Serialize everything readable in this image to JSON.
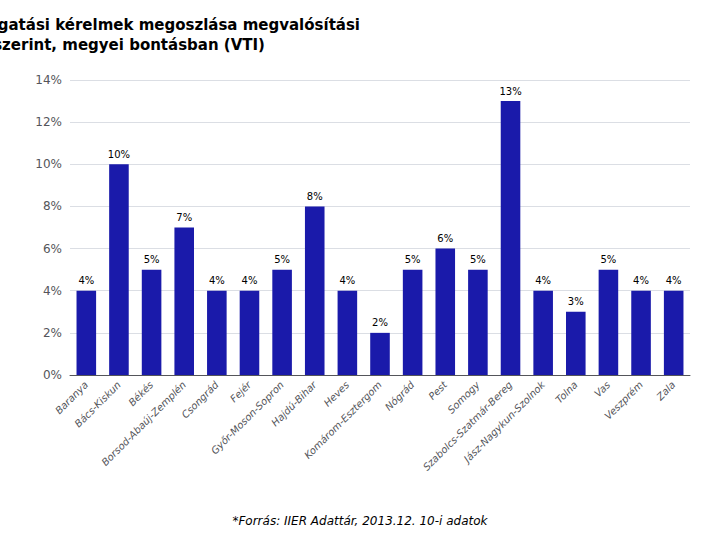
{
  "chart_data": {
    "type": "bar",
    "title": "Beérkezett támogatási kérelmek megoszlása megvalósítási\nhely szerint, megyei bontásban (VTI)",
    "footnote": "*Forrás: IIER Adattár, 2013.12. 10-i adatok",
    "categories": [
      "Baranya",
      "Bács-Kiskun",
      "Békés",
      "Borsod-Abaúj-Zemplén",
      "Csongrád",
      "Fejér",
      "Győr-Moson-Sopron",
      "Hajdú-Bihar",
      "Heves",
      "Komárom-Esztergom",
      "Nógrád",
      "Pest",
      "Somogy",
      "Szabolcs-Szatmár-Bereg",
      "Jász-Nagykun-Szolnok",
      "Tolna",
      "Vas",
      "Veszprém",
      "Zala"
    ],
    "values": [
      4,
      10,
      5,
      7,
      4,
      4,
      5,
      8,
      4,
      2,
      5,
      6,
      5,
      13,
      4,
      3,
      5,
      4,
      4
    ],
    "value_labels": [
      "4%",
      "10%",
      "5%",
      "7%",
      "4%",
      "4%",
      "5%",
      "8%",
      "4%",
      "2%",
      "5%",
      "6%",
      "5%",
      "13%",
      "4%",
      "3%",
      "5%",
      "4%",
      "4%"
    ],
    "data_labels": true,
    "color": "#1a1aaa",
    "ylim": [
      0,
      14
    ],
    "yticks": [
      {
        "value": 0,
        "label": "0%"
      },
      {
        "value": 2,
        "label": "2%"
      },
      {
        "value": 4,
        "label": "4%"
      },
      {
        "value": 6,
        "label": "6%"
      },
      {
        "value": 8,
        "label": "8%"
      },
      {
        "value": 10,
        "label": "10%"
      },
      {
        "value": 12,
        "label": "12%"
      },
      {
        "value": 14,
        "label": "14%"
      }
    ],
    "grid": true
  }
}
